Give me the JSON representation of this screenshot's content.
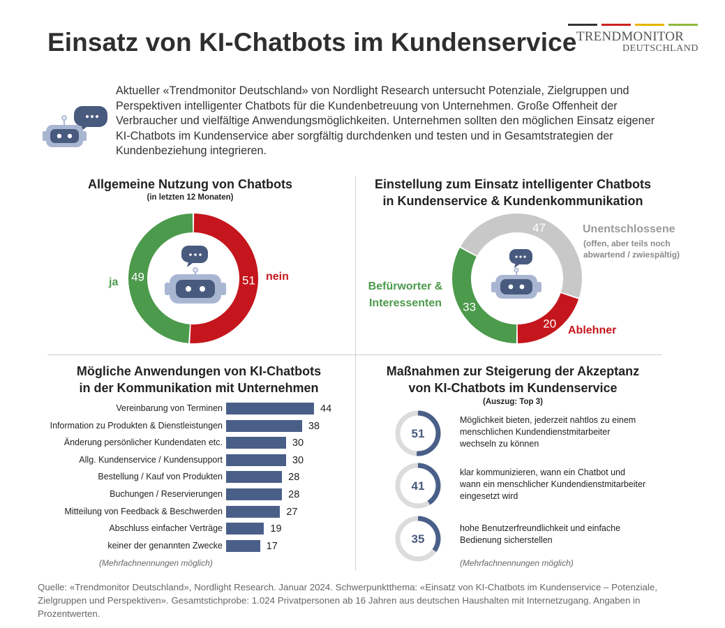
{
  "header": {
    "title": "Einsatz von KI-Chatbots im Kundenservice",
    "brand_name": "TRENDMONITOR",
    "brand_sub": "DEUTSCHLAND",
    "brand_colors": [
      "#333333",
      "#cc2222",
      "#e8b400",
      "#8dbb3c"
    ]
  },
  "intro": {
    "text": "Aktueller «Trendmonitor Deutschland» von Nordlight Research untersucht Potenziale, Zielgruppen und Perspektiven intelligenter Chatbots für die Kundenbetreuung von Unternehmen. Große Offenheit der Verbraucher und vielfältige Anwendungsmöglichkeiten. Unternehmen sollten den möglichen Einsatz eigener KI-Chatbots im Kundenservice aber sorgfältig durchdenken und testen und in Gesamtstrategien der Kundenbeziehung integrieren.",
    "icon": "chatbot-icon"
  },
  "colors": {
    "green": "#4c9a4c",
    "red": "#c4161c",
    "gray": "#c8c8c8",
    "navy": "#4a5f88",
    "ring_track": "#dcdcdc"
  },
  "chart_data": [
    {
      "type": "pie",
      "variant": "donut",
      "title": "Allgemeine Nutzung von Chatbots",
      "subtitle": "(in letzten 12 Monaten)",
      "categories": [
        "ja",
        "nein"
      ],
      "values": [
        49,
        51
      ],
      "colors": [
        "#4c9a4c",
        "#c4161c"
      ]
    },
    {
      "type": "pie",
      "variant": "donut",
      "title_line1": "Einstellung zum Einsatz intelligenter Chatbots",
      "title_line2": "in Kundenservice & Kundenkommunikation",
      "categories": [
        "Unentschlossene",
        "Ablehner",
        "Befürworter & Interessenten"
      ],
      "values": [
        47,
        20,
        33
      ],
      "colors": [
        "#c8c8c8",
        "#c4161c",
        "#4c9a4c"
      ],
      "label_unentschlossene": "Unentschlossene",
      "label_unentschlossene_note_1": "(offen, aber teils noch",
      "label_unentschlossene_note_2": "abwartend / zwiespältig)",
      "label_befuerworter_1": "Befürworter &",
      "label_befuerworter_2": "Interessenten",
      "label_ablehner": "Ablehner"
    },
    {
      "type": "bar",
      "orientation": "horizontal",
      "title_line1": "Mögliche Anwendungen von KI-Chatbots",
      "title_line2": "in der Kommunikation mit Unternehmen",
      "categories": [
        "Vereinbarung von Terminen",
        "Information zu Produkten & Dienstleistungen",
        "Änderung persönlicher Kundendaten etc.",
        "Allg. Kundenservice / Kundensupport",
        "Bestellung / Kauf von Produkten",
        "Buchungen / Reservierungen",
        "Mitteilung von Feedback & Beschwerden",
        "Abschluss einfacher Verträge",
        "keiner der genannten Zwecke"
      ],
      "values": [
        44,
        38,
        30,
        30,
        28,
        28,
        27,
        19,
        17
      ],
      "xlim": [
        0,
        44
      ],
      "note": "(Mehrfachnennungen möglich)",
      "color": "#4a5f88"
    },
    {
      "type": "pie",
      "variant": "progress-rings",
      "title_line1": "Maßnahmen zur Steigerung der Akzeptanz",
      "title_line2": "von KI-Chatbots im Kundenservice",
      "subtitle": "(Auszug: Top 3)",
      "items": [
        {
          "value": 51,
          "text": "Möglichkeit bieten, jederzeit nahtlos zu einem menschlichen Kundendienstmitarbeiter wechseln zu können"
        },
        {
          "value": 41,
          "text": "klar kommunizieren, wann ein Chatbot und wann ein menschlicher Kundendienstmitarbeiter eingesetzt wird"
        },
        {
          "value": 35,
          "text": "hohe Benutzerfreundlichkeit und einfache Bedienung sicherstellen"
        }
      ],
      "note": "(Mehrfachnennungen möglich)"
    }
  ],
  "source": "Quelle: «Trendmonitor Deutschland», Nordlight Research. Januar 2024. Schwerpunktthema: «Einsatz von KI-Chatbots im Kundenservice – Potenziale, Zielgruppen und Perspektiven». Gesamtstichprobe: 1.024 Privatpersonen ab 16 Jahren aus deutschen Haushalten mit Internetzugang. Angaben in Prozentwerten."
}
